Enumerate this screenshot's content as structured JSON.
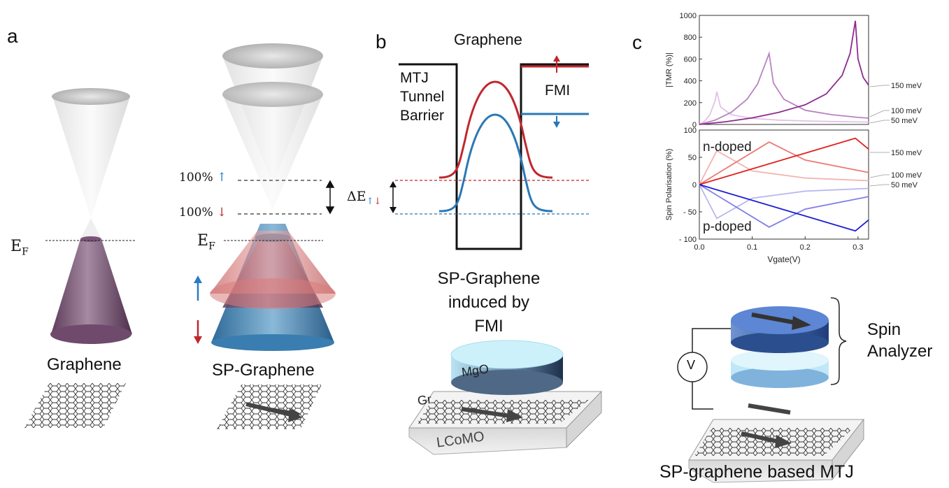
{
  "panel_a": {
    "label": "a",
    "ef_left": "E",
    "ef_sub": "F",
    "ef_right": "E",
    "pol_up": "100%",
    "pol_down": "100%",
    "up_arrow": "↑",
    "down_arrow": "↓",
    "caption_left": "Graphene",
    "caption_right": "SP-Graphene"
  },
  "panel_b": {
    "label": "b",
    "title": "Graphene",
    "barrier": [
      "MTJ",
      "Tunnel",
      "Barrier"
    ],
    "fmi": "FMI",
    "delta_e": "ΔE",
    "delta_up": "↑",
    "delta_down": "↓",
    "caption": [
      "SP-Graphene",
      "induced by",
      "FMI"
    ],
    "mgo": "MgO",
    "gr": "Gr",
    "substrate": "LCoMO"
  },
  "panel_c": {
    "label": "c",
    "device_label": [
      "Spin",
      "Analyzer"
    ],
    "voltmeter": "V",
    "caption": "SP-graphene based MTJ"
  },
  "chart_data": [
    {
      "type": "line",
      "ylabel": "|TMR (%)|",
      "xlim": [
        0,
        0.32
      ],
      "ylim": [
        0,
        1000
      ],
      "yticks": [
        "0",
        "200",
        "400",
        "600",
        "800",
        "1000"
      ],
      "series": [
        {
          "name": "50 meV",
          "color": "#e2c3e6",
          "x": [
            0,
            0.01,
            0.02,
            0.03,
            0.033,
            0.04,
            0.06,
            0.1,
            0.15,
            0.2,
            0.25,
            0.3,
            0.32
          ],
          "y": [
            0,
            30,
            90,
            220,
            300,
            160,
            90,
            55,
            40,
            32,
            27,
            23,
            22
          ]
        },
        {
          "name": "100 meV",
          "color": "#b784c0",
          "x": [
            0,
            0.03,
            0.06,
            0.09,
            0.11,
            0.125,
            0.132,
            0.14,
            0.16,
            0.2,
            0.25,
            0.3,
            0.32
          ],
          "y": [
            0,
            40,
            110,
            230,
            370,
            560,
            650,
            380,
            230,
            130,
            90,
            65,
            58
          ]
        },
        {
          "name": "150 meV",
          "color": "#8d2a8f",
          "x": [
            0,
            0.05,
            0.1,
            0.15,
            0.2,
            0.24,
            0.27,
            0.285,
            0.295,
            0.3,
            0.31,
            0.32
          ],
          "y": [
            0,
            25,
            60,
            110,
            180,
            280,
            450,
            650,
            950,
            600,
            430,
            360
          ]
        }
      ]
    },
    {
      "type": "line",
      "ylabel": "Spin Polarisation (%)",
      "xlabel": "Vgate(V)",
      "xlim": [
        0,
        0.32
      ],
      "ylim": [
        -100,
        100
      ],
      "xticks": [
        "0.0",
        "0.1",
        "0.2",
        "0.3"
      ],
      "yticks": [
        "- 100",
        "- 50",
        "0",
        "50",
        "100"
      ],
      "annotations": [
        "n-doped",
        "p-doped"
      ],
      "series": [
        {
          "name": "50 meV",
          "color": "#f2b3b0",
          "x": [
            0,
            0.033,
            0.1,
            0.2,
            0.32
          ],
          "y": [
            0,
            62,
            25,
            12,
            7
          ]
        },
        {
          "name": "100 meV",
          "color": "#ec7a74",
          "x": [
            0,
            0.132,
            0.2,
            0.32
          ],
          "y": [
            0,
            78,
            45,
            22
          ]
        },
        {
          "name": "150 meV",
          "color": "#e01f1f",
          "x": [
            0,
            0.295,
            0.32
          ],
          "y": [
            0,
            85,
            65
          ]
        },
        {
          "name": "",
          "color": "#b6b6f0",
          "x": [
            0,
            0.033,
            0.1,
            0.2,
            0.32
          ],
          "y": [
            0,
            -62,
            -25,
            -12,
            -7
          ]
        },
        {
          "name": "",
          "color": "#7f7fe8",
          "x": [
            0,
            0.132,
            0.2,
            0.32
          ],
          "y": [
            0,
            -78,
            -45,
            -22
          ]
        },
        {
          "name": "",
          "color": "#1d1dd0",
          "x": [
            0,
            0.295,
            0.32
          ],
          "y": [
            0,
            -85,
            -65
          ]
        }
      ]
    }
  ]
}
